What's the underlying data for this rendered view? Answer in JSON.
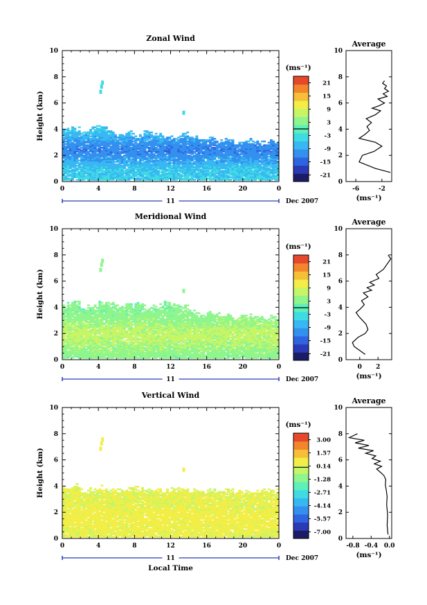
{
  "chart_data": [
    {
      "type": "heatmap",
      "title": "Zonal Wind",
      "ylabel": "Height (km)",
      "xticks": [
        "0",
        "4",
        "8",
        "12",
        "16",
        "20",
        "0"
      ],
      "yticks": [
        "0",
        "2",
        "4",
        "6",
        "8",
        "10"
      ],
      "xlim": [
        0,
        24
      ],
      "ylim": [
        0,
        10
      ],
      "date_axis": {
        "day": "11",
        "label": "Dec 2007"
      },
      "colorbar": {
        "unit": "(ms⁻¹)",
        "ticks": [
          "21",
          "15",
          "9",
          "3",
          "-3",
          "-9",
          "-15",
          "-21"
        ],
        "range": [
          -24,
          24
        ]
      },
      "field": {
        "top_km": [
          3.9,
          4.0,
          3.7,
          4.1,
          4.2,
          3.8,
          3.6,
          3.6,
          3.4,
          3.7,
          3.5,
          3.3,
          3.4,
          3.5,
          3.3,
          3.1,
          3.2,
          3.0,
          3.1,
          2.9,
          3.1,
          3.0,
          2.9,
          3.0
        ],
        "core_km": 2.4,
        "core_value": -12,
        "surface_value": -5
      },
      "profile": {
        "title": "Average",
        "xticks": [
          "-6",
          "-2"
        ],
        "xlim": [
          -7.5,
          -0.5
        ],
        "xunit": "(ms⁻¹)",
        "x": [
          -0.7,
          -3.0,
          -5.5,
          -5.0,
          -3.2,
          -2.0,
          -3.0,
          -5.5,
          -4.6,
          -3.9,
          -4.3,
          -3.6,
          -4.4,
          -3.0,
          -2.2,
          -3.5,
          -2.4,
          -1.6,
          -2.0,
          -2.6,
          -1.2,
          -1.8,
          -1.0,
          -1.6,
          -1.3,
          -1.9,
          -1.6
        ],
        "y": [
          0.7,
          1.0,
          1.5,
          2.0,
          2.3,
          2.7,
          3.0,
          3.3,
          3.6,
          3.9,
          4.2,
          4.5,
          4.8,
          5.1,
          5.4,
          5.6,
          5.8,
          6.0,
          6.1,
          6.3,
          6.5,
          6.7,
          6.9,
          7.1,
          7.3,
          7.5,
          7.7
        ]
      }
    },
    {
      "type": "heatmap",
      "title": "Meridional Wind",
      "ylabel": "Height (km)",
      "xticks": [
        "0",
        "4",
        "8",
        "12",
        "16",
        "20",
        "0"
      ],
      "yticks": [
        "0",
        "2",
        "4",
        "6",
        "8",
        "10"
      ],
      "xlim": [
        0,
        24
      ],
      "ylim": [
        0,
        10
      ],
      "date_axis": {
        "day": "11",
        "label": "Dec 2007"
      },
      "colorbar": {
        "unit": "(ms⁻¹)",
        "ticks": [
          "21",
          "15",
          "9",
          "3",
          "-3",
          "-9",
          "-15",
          "-21"
        ],
        "range": [
          -24,
          24
        ]
      },
      "field": {
        "top_km": [
          4.1,
          4.2,
          3.9,
          4.0,
          4.3,
          4.2,
          4.0,
          4.1,
          4.3,
          3.9,
          4.0,
          4.2,
          4.1,
          3.9,
          3.6,
          3.4,
          3.5,
          3.3,
          3.4,
          3.2,
          3.3,
          3.2,
          3.1,
          3.2
        ],
        "core_km": 1.8,
        "core_value": 7,
        "surface_value": 3
      },
      "profile": {
        "title": "Average",
        "xticks": [
          "0",
          "2"
        ],
        "xlim": [
          -1.5,
          3.5
        ],
        "xunit": "(ms⁻¹)",
        "x": [
          0.6,
          0.0,
          -0.6,
          -0.8,
          -0.2,
          0.6,
          0.9,
          0.7,
          0.3,
          -0.1,
          -0.4,
          0.1,
          0.5,
          0.2,
          0.9,
          0.4,
          1.3,
          0.8,
          1.6,
          1.1,
          2.1,
          1.8,
          2.6,
          3.0,
          3.4,
          3.1
        ],
        "y": [
          0.4,
          0.7,
          1.0,
          1.3,
          1.7,
          2.0,
          2.3,
          2.7,
          3.0,
          3.3,
          3.6,
          3.9,
          4.2,
          4.5,
          4.8,
          5.1,
          5.3,
          5.5,
          5.7,
          5.9,
          6.2,
          6.5,
          6.9,
          7.3,
          7.7,
          8.0
        ]
      }
    },
    {
      "type": "heatmap",
      "title": "Vertical Wind",
      "ylabel": "Height (km)",
      "xlabel": "Local Time",
      "xticks": [
        "0",
        "4",
        "8",
        "12",
        "16",
        "20",
        "0"
      ],
      "yticks": [
        "0",
        "2",
        "4",
        "6",
        "8",
        "10"
      ],
      "xlim": [
        0,
        24
      ],
      "ylim": [
        0,
        10
      ],
      "date_axis": {
        "day": "11",
        "label": "Dec 2007"
      },
      "colorbar": {
        "unit": "(ms⁻¹)",
        "ticks": [
          "3.00",
          "1.57",
          "0.14",
          "-1.28",
          "-2.71",
          "-4.14",
          "-5.57",
          "-7.00"
        ],
        "range": [
          -7.7,
          3.7
        ]
      },
      "field": {
        "top_km": [
          3.8,
          3.9,
          3.6,
          3.7,
          3.8,
          3.7,
          3.6,
          3.7,
          3.8,
          3.6,
          3.7,
          3.6,
          3.7,
          3.8,
          3.6,
          3.5,
          3.6,
          3.5,
          3.6,
          3.5,
          3.6,
          3.5,
          3.6,
          3.6
        ],
        "core_km": 1.5,
        "core_value": 0.6,
        "surface_value": 0.3
      },
      "profile": {
        "title": "Average",
        "xticks": [
          "-0.8",
          "-0.4",
          "0.0"
        ],
        "xlim": [
          -0.95,
          0.05
        ],
        "xunit": "(ms⁻¹)",
        "x": [
          -0.03,
          -0.05,
          -0.04,
          -0.06,
          -0.05,
          -0.07,
          -0.09,
          -0.08,
          -0.12,
          -0.18,
          -0.28,
          -0.17,
          -0.33,
          -0.2,
          -0.38,
          -0.3,
          -0.52,
          -0.35,
          -0.68,
          -0.45,
          -0.75,
          -0.55,
          -0.88,
          -0.7
        ],
        "y": [
          0.3,
          1.0,
          1.8,
          2.6,
          3.2,
          3.7,
          4.1,
          4.5,
          4.8,
          5.0,
          5.3,
          5.5,
          5.7,
          5.9,
          6.1,
          6.3,
          6.5,
          6.7,
          6.9,
          7.1,
          7.3,
          7.5,
          7.7,
          8.0
        ]
      }
    }
  ]
}
